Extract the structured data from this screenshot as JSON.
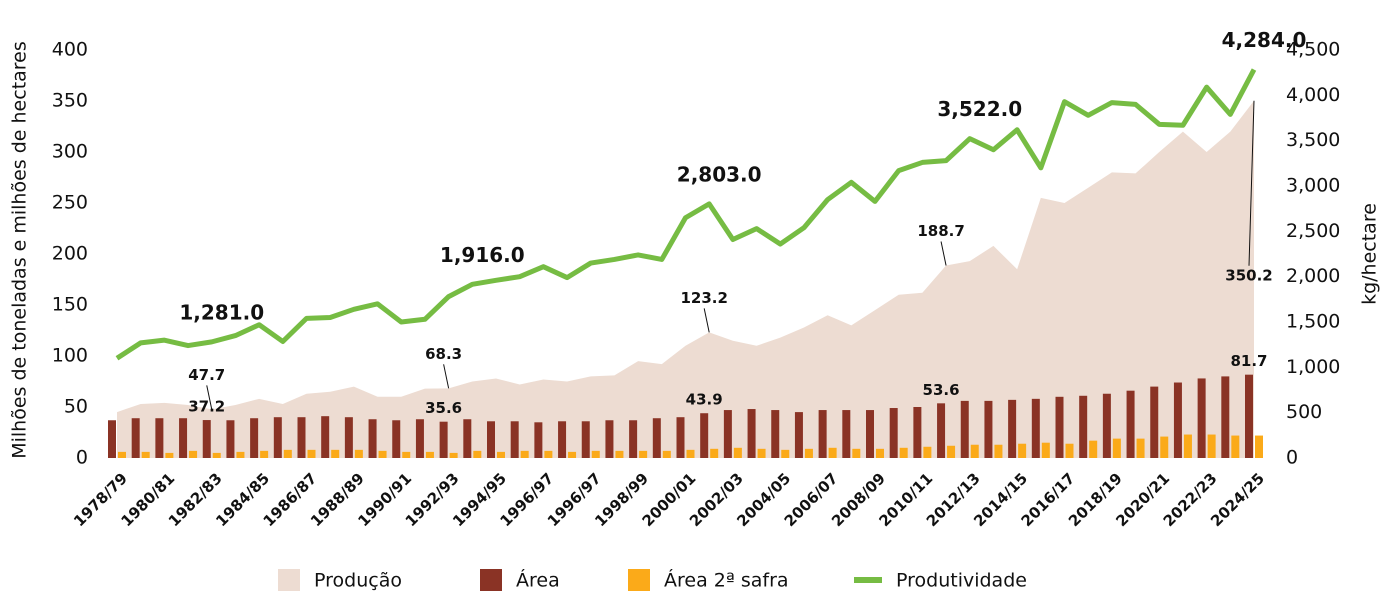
{
  "chart_data": {
    "type": "combo",
    "ylabel": "Milhões de toneladas e milhões de hectares",
    "y2label": "kg/hectare",
    "ylim": [
      0,
      400
    ],
    "yticks": [
      0,
      50,
      100,
      150,
      200,
      250,
      300,
      350,
      400
    ],
    "y2lim": [
      0,
      4500
    ],
    "y2ticks": [
      0,
      500,
      {
        "value": 1000,
        "label": "1,000"
      },
      {
        "value": 1500,
        "label": "1,500"
      },
      {
        "value": 2000,
        "label": "2,000"
      },
      {
        "value": 2500,
        "label": "2,500"
      },
      {
        "value": 3000,
        "label": "3,000"
      },
      {
        "value": 3500,
        "label": "3,500"
      },
      {
        "value": 4000,
        "label": "4,000"
      },
      {
        "value": 4500,
        "label": "4,500"
      }
    ],
    "categories": [
      "1978/79",
      null,
      "1980/81",
      null,
      "1982/83",
      null,
      "1984/85",
      null,
      "1986/87",
      null,
      "1988/89",
      null,
      "1990/91",
      null,
      "1992/93",
      null,
      "1994/95",
      null,
      "1996/97",
      null,
      "1996/97",
      null,
      "1998/99",
      null,
      "2000/01",
      null,
      "2002/03",
      null,
      "2004/05",
      null,
      "2006/07",
      null,
      "2008/09",
      null,
      "2010/11",
      null,
      "2012/13",
      null,
      "2014/15",
      null,
      "2016/17",
      null,
      "2018/19",
      null,
      "2020/21",
      null,
      "2022/23",
      null,
      "2024/25"
    ],
    "legend": "bottom",
    "series": [
      {
        "name": "Produção",
        "type": "area",
        "color": "#eddcd2",
        "values": [
          45,
          53,
          54,
          52,
          47.7,
          52,
          58,
          53,
          63,
          65,
          70,
          60,
          60,
          68,
          68.3,
          75,
          78,
          72,
          77,
          75,
          80,
          81,
          95,
          92,
          110,
          123.2,
          115,
          110,
          118,
          128,
          140,
          130,
          145,
          160,
          162,
          188.7,
          193,
          208,
          185,
          255,
          250,
          265,
          280,
          279,
          300,
          320,
          300,
          320,
          350.2
        ],
        "value_labels": [
          null,
          null,
          null,
          null,
          "47.7",
          null,
          null,
          null,
          null,
          null,
          null,
          null,
          null,
          null,
          "68.3",
          null,
          null,
          null,
          null,
          null,
          null,
          null,
          null,
          null,
          null,
          "123.2",
          null,
          null,
          null,
          null,
          null,
          null,
          null,
          null,
          null,
          "188.7",
          null,
          null,
          null,
          null,
          null,
          null,
          null,
          null,
          null,
          null,
          null,
          null,
          "350.2"
        ]
      },
      {
        "name": "Área",
        "type": "bar",
        "color": "#8a3325",
        "values": [
          37,
          39,
          39,
          39,
          37.2,
          37,
          39,
          40,
          40,
          41,
          40,
          38,
          37,
          38,
          35.6,
          38,
          36,
          36,
          35,
          36,
          36,
          37,
          37,
          39,
          40,
          43.9,
          47,
          48,
          47,
          45,
          47,
          47,
          47,
          49,
          50,
          53.6,
          56,
          56,
          57,
          58,
          60,
          61,
          63,
          66,
          70,
          74,
          78,
          80,
          81.7
        ],
        "value_labels": [
          null,
          null,
          null,
          null,
          "37.2",
          null,
          null,
          null,
          null,
          null,
          null,
          null,
          null,
          null,
          "35.6",
          null,
          null,
          null,
          null,
          null,
          null,
          null,
          null,
          null,
          null,
          "43.9",
          null,
          null,
          null,
          null,
          null,
          null,
          null,
          null,
          null,
          "53.6",
          null,
          null,
          null,
          null,
          null,
          null,
          null,
          null,
          null,
          null,
          null,
          null,
          "81.7"
        ]
      },
      {
        "name": "Área 2ª safra",
        "type": "bar",
        "color": "#fbaa19",
        "values": [
          6,
          6,
          5,
          7,
          5,
          6,
          7,
          8,
          8,
          8,
          8,
          7,
          6,
          6,
          5,
          7,
          6,
          7,
          7,
          6,
          7,
          7,
          7,
          7,
          8,
          9,
          10,
          9,
          8,
          9,
          10,
          9,
          9,
          10,
          11,
          12,
          13,
          13,
          14,
          15,
          14,
          17,
          19,
          19,
          21,
          23,
          23,
          22,
          22
        ]
      },
      {
        "name": "Produtividade",
        "type": "line",
        "axis": "y2",
        "color": "#76bc43",
        "values": [
          1100,
          1270,
          1300,
          1240,
          1281,
          1350,
          1470,
          1285,
          1540,
          1550,
          1640,
          1700,
          1500,
          1530,
          1780,
          1916,
          1960,
          2000,
          2110,
          1990,
          2150,
          2190,
          2240,
          2190,
          2650,
          2803,
          2410,
          2530,
          2360,
          2540,
          2850,
          3040,
          2830,
          3170,
          3260,
          3280,
          3522,
          3400,
          3620,
          3200,
          3930,
          3780,
          3920,
          3900,
          3680,
          3670,
          4090,
          3790,
          4284
        ],
        "value_labels": [
          null,
          null,
          null,
          null,
          "1,281.0",
          null,
          null,
          null,
          null,
          null,
          null,
          null,
          null,
          null,
          null,
          "1,916.0",
          null,
          null,
          null,
          null,
          null,
          null,
          null,
          null,
          null,
          "2,803.0",
          null,
          null,
          null,
          null,
          null,
          null,
          null,
          null,
          null,
          null,
          "3,522.0",
          null,
          null,
          null,
          null,
          null,
          null,
          null,
          null,
          null,
          null,
          null,
          "4,284.0"
        ]
      }
    ]
  }
}
